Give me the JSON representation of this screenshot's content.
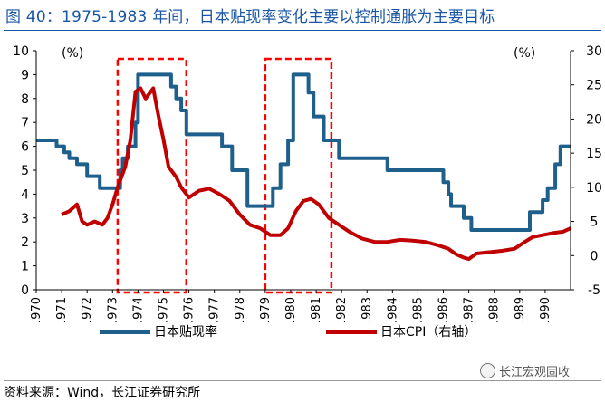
{
  "header": {
    "title": "图 40：1975-1983 年间，日本贴现率变化主要以控制通胀为主要目标"
  },
  "footer": {
    "source": "资料来源：Wind，长江证券研究所",
    "watermark": "长江宏观固收"
  },
  "chart_data": {
    "type": "line",
    "x_range": [
      1970.0,
      1991.0
    ],
    "y_left": {
      "unit_label": "(%)",
      "ylim": [
        0,
        10
      ],
      "ticks": [
        0,
        1,
        2,
        3,
        4,
        5,
        6,
        7,
        8,
        9,
        10
      ]
    },
    "y_right": {
      "unit_label": "(%)",
      "ylim": [
        -5,
        30
      ],
      "ticks": [
        -5,
        0,
        5,
        10,
        15,
        20,
        25,
        30
      ]
    },
    "x_ticks": [
      "1970",
      "1971",
      "1972",
      "1973",
      "1974",
      "1975",
      "1976",
      "1977",
      "1978",
      "1979",
      "1980",
      "1981",
      "1982",
      "1983",
      "1984",
      "1985",
      "1986",
      "1987",
      "1988",
      "1989",
      "1990"
    ],
    "series": [
      {
        "name": "日本贴现率",
        "axis": "left",
        "color": "#1f5f8b",
        "step": true,
        "x": [
          1970.0,
          1970.8,
          1971.1,
          1971.3,
          1971.6,
          1972.0,
          1972.5,
          1973.3,
          1973.4,
          1973.6,
          1973.9,
          1974.0,
          1975.3,
          1975.5,
          1975.7,
          1975.9,
          1977.3,
          1977.7,
          1978.3,
          1979.3,
          1979.6,
          1979.9,
          1980.1,
          1980.7,
          1980.9,
          1981.3,
          1981.9,
          1983.8,
          1986.0,
          1986.2,
          1986.3,
          1986.8,
          1987.1,
          1989.4,
          1989.9,
          1990.1,
          1990.4,
          1990.6,
          1991.0
        ],
        "y": [
          6.25,
          6.0,
          5.75,
          5.5,
          5.25,
          4.75,
          4.25,
          5.0,
          5.5,
          6.0,
          7.0,
          9.0,
          8.5,
          8.0,
          7.5,
          6.5,
          6.0,
          5.0,
          3.5,
          4.25,
          5.25,
          6.25,
          9.0,
          8.25,
          7.25,
          6.25,
          5.5,
          5.0,
          4.5,
          4.0,
          3.5,
          3.0,
          2.5,
          3.25,
          3.75,
          4.25,
          5.25,
          6.0,
          6.0
        ]
      },
      {
        "name": "日本CPI（右轴）",
        "axis": "right",
        "color": "#c00000",
        "x": [
          1971.0,
          1971.3,
          1971.6,
          1971.8,
          1972.0,
          1972.3,
          1972.6,
          1972.8,
          1973.0,
          1973.2,
          1973.5,
          1973.7,
          1973.9,
          1974.1,
          1974.3,
          1974.6,
          1974.8,
          1975.0,
          1975.2,
          1975.5,
          1975.7,
          1976.0,
          1976.4,
          1976.8,
          1977.2,
          1977.6,
          1978.0,
          1978.4,
          1978.8,
          1979.2,
          1979.6,
          1979.9,
          1980.2,
          1980.5,
          1980.8,
          1981.1,
          1981.5,
          1981.9,
          1982.3,
          1982.8,
          1983.3,
          1983.8,
          1984.3,
          1984.8,
          1985.3,
          1985.8,
          1986.2,
          1986.5,
          1986.8,
          1987.0,
          1987.3,
          1987.8,
          1988.3,
          1988.8,
          1989.2,
          1989.5,
          1989.9,
          1990.3,
          1990.7,
          1991.0
        ],
        "y": [
          6.0,
          6.5,
          7.5,
          5.0,
          4.5,
          5.0,
          4.5,
          5.5,
          7.5,
          10.0,
          13.0,
          17.0,
          24.0,
          24.5,
          23.0,
          24.5,
          20.5,
          17.0,
          13.0,
          11.5,
          10.0,
          8.5,
          9.5,
          9.8,
          9.0,
          8.0,
          6.0,
          4.5,
          4.0,
          3.0,
          3.0,
          4.0,
          6.5,
          8.0,
          8.3,
          7.5,
          5.5,
          4.5,
          3.5,
          2.5,
          2.0,
          2.0,
          2.3,
          2.2,
          2.0,
          1.5,
          1.0,
          0.2,
          -0.3,
          -0.5,
          0.3,
          0.5,
          0.7,
          1.0,
          2.0,
          2.7,
          3.0,
          3.3,
          3.5,
          4.0
        ]
      }
    ],
    "highlight_regions": [
      {
        "x_start": 1973.2,
        "x_end": 1975.9,
        "color": "#ff0000"
      },
      {
        "x_start": 1979.0,
        "x_end": 1981.6,
        "color": "#ff0000"
      }
    ]
  }
}
